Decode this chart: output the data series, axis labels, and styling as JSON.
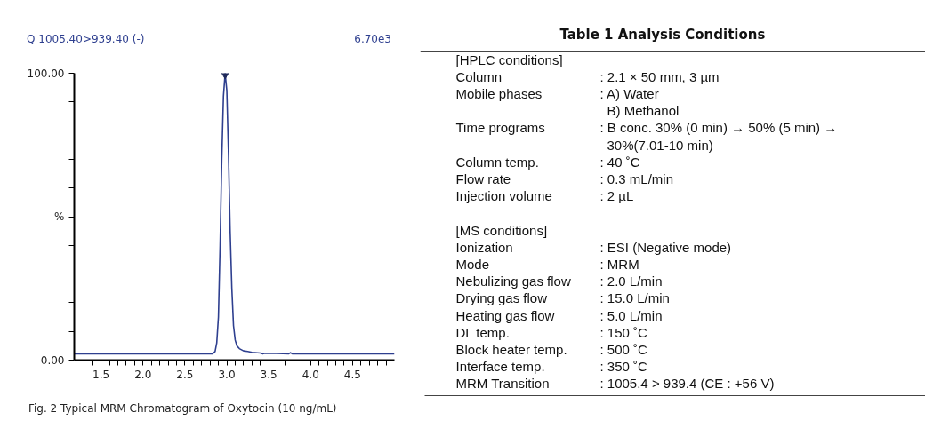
{
  "chart_data": [
    {
      "type": "line",
      "annotations": [
        "Q 1005.40>939.40 (-)",
        "6.70e3",
        "Fig. 2 Typical MRM Chromatogram of Oxytocin (10 ng/mL)"
      ],
      "xlim": [
        1.18,
        5.0
      ],
      "ylim": [
        0,
        100
      ],
      "xticks": [
        {
          "value": 1.2,
          "label": null
        },
        {
          "value": 1.3,
          "label": null
        },
        {
          "value": 1.4,
          "label": null
        },
        1.5,
        {
          "value": 1.6,
          "label": null
        },
        {
          "value": 1.7,
          "label": null
        },
        {
          "value": 1.8,
          "label": null
        },
        {
          "value": 1.9,
          "label": null
        },
        {
          "value": 2.0,
          "label": "2.0"
        },
        {
          "value": 2.1,
          "label": null
        },
        {
          "value": 2.2,
          "label": null
        },
        {
          "value": 2.3,
          "label": null
        },
        {
          "value": 2.4,
          "label": null
        },
        2.5,
        {
          "value": 2.6,
          "label": null
        },
        {
          "value": 2.7,
          "label": null
        },
        {
          "value": 2.8,
          "label": null
        },
        {
          "value": 2.9,
          "label": null
        },
        {
          "value": 3.0,
          "label": "3.0"
        },
        {
          "value": 3.1,
          "label": null
        },
        {
          "value": 3.2,
          "label": null
        },
        {
          "value": 3.3,
          "label": null
        },
        {
          "value": 3.4,
          "label": null
        },
        3.5,
        {
          "value": 3.6,
          "label": null
        },
        {
          "value": 3.7,
          "label": null
        },
        {
          "value": 3.8,
          "label": null
        },
        {
          "value": 3.9,
          "label": null
        },
        {
          "value": 4.0,
          "label": "4.0"
        },
        {
          "value": 4.1,
          "label": null
        },
        {
          "value": 4.2,
          "label": null
        },
        {
          "value": 4.3,
          "label": null
        },
        {
          "value": 4.4,
          "label": null
        },
        4.5,
        {
          "value": 4.6,
          "label": null
        },
        {
          "value": 4.7,
          "label": null
        },
        {
          "value": 4.8,
          "label": null
        },
        {
          "value": 4.9,
          "label": null
        }
      ],
      "yticks": [
        {
          "value": 0,
          "label": "0.00"
        },
        {
          "value": 10,
          "label": null
        },
        {
          "value": 20,
          "label": null
        },
        {
          "value": 30,
          "label": null
        },
        {
          "value": 40,
          "label": null
        },
        {
          "value": 50,
          "label": "%"
        },
        {
          "value": 60,
          "label": null
        },
        {
          "value": 70,
          "label": null
        },
        {
          "value": 80,
          "label": null
        },
        {
          "value": 90,
          "label": null
        },
        {
          "value": 100,
          "label": "100.00"
        }
      ],
      "grid": false,
      "series": [
        {
          "type": "line",
          "color": "#2e3f8f",
          "x": [
            1.18,
            2.83,
            2.86,
            2.88,
            2.9,
            2.92,
            2.94,
            2.96,
            2.98,
            3.0,
            3.02,
            3.04,
            3.06,
            3.08,
            3.1,
            3.12,
            3.15,
            3.2,
            3.25,
            3.3,
            3.4,
            3.43,
            3.45,
            3.6,
            3.74,
            3.76,
            3.78,
            5.0
          ],
          "values": [
            2.2,
            2.2,
            3,
            6,
            15,
            40,
            70,
            92,
            100,
            94,
            72,
            45,
            25,
            12,
            7,
            5,
            4,
            3.2,
            3.0,
            2.7,
            2.5,
            2.2,
            2.4,
            2.3,
            2.2,
            2.6,
            2.2,
            2.2
          ]
        },
        {
          "type": "scatter",
          "marker": "triangle",
          "color": "#1f2a5a",
          "x": [
            2.98
          ],
          "values": [
            100
          ]
        }
      ]
    },
    {
      "type": "other",
      "title": "Table 1  Analysis Conditions",
      "categories": [
        "[HPLC conditions]",
        "Column",
        "Mobile phases",
        null,
        "Time programs",
        null,
        "Column temp.",
        "Flow rate",
        "Injection volume",
        null,
        "[MS conditions]",
        "Ionization",
        "Mode",
        "Nebulizing gas flow",
        "Drying gas flow",
        "Heating gas flow",
        "DL temp.",
        "Block heater temp.",
        "Interface temp.",
        "MRM Transition"
      ],
      "annotations": [
        null,
        ": 2.1 × 50 mm, 3 µm",
        ": A) Water",
        "B) Methanol",
        ": B conc. 30% (0 min) → 50% (5 min) →",
        "30%(7.01-10 min)",
        ": 40 ˚C",
        ": 0.3 mL/min",
        ": 2 µL",
        null,
        null,
        ": ESI (Negative mode)",
        ": MRM",
        ": 2.0 L/min",
        ": 15.0 L/min",
        ": 5.0 L/min",
        ": 150 ˚C",
        ": 500 ˚C",
        ": 350 ˚C",
        ": 1005.4 > 939.4 (CE : +56 V)"
      ]
    }
  ]
}
